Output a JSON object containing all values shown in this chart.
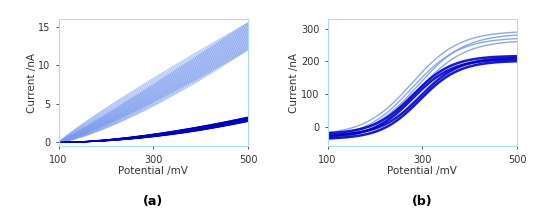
{
  "panel_a": {
    "xlabel": "Potential /mV",
    "ylabel": "Current /nA",
    "label": "(a)",
    "xlim": [
      100,
      500
    ],
    "ylim": [
      -0.5,
      16
    ],
    "yticks": [
      0,
      5,
      10,
      15
    ],
    "xticks": [
      100,
      300,
      500
    ],
    "solid_color": "#0000cc",
    "light_color": "#7799ee",
    "solid_lw": 0.6,
    "light_lw": 0.5,
    "n_solid_cycles": 18,
    "n_light_cycles": 22
  },
  "panel_b": {
    "xlabel": "Potential /mV",
    "ylabel": "Current /nA",
    "label": "(b)",
    "xlim": [
      100,
      500
    ],
    "ylim": [
      -60,
      330
    ],
    "yticks": [
      0,
      100,
      200,
      300
    ],
    "xticks": [
      100,
      300,
      500
    ],
    "solid_color": "#0000cc",
    "light_color": "#7799ee",
    "solid_lw": 1.8,
    "light_lw": 1.0,
    "n_solid_cycles": 2,
    "n_light_cycles": 2
  },
  "axis_color": "#aaddee",
  "tick_color": "#333333",
  "background": "#ffffff"
}
